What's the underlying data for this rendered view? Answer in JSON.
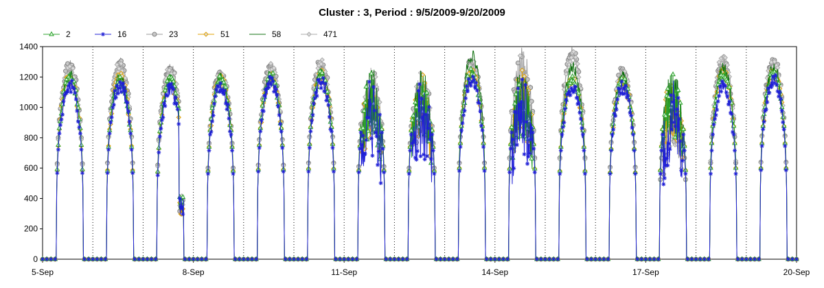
{
  "chart_data": {
    "type": "line",
    "title": "Cluster : 3, Period : 9/5/2009-9/20/2009",
    "xlabel": "",
    "ylabel": "",
    "x_tick_labels": [
      "5-Sep",
      "8-Sep",
      "11-Sep",
      "14-Sep",
      "17-Sep",
      "20-Sep"
    ],
    "y_tick_labels": [
      "0",
      "200",
      "400",
      "600",
      "800",
      "1000",
      "1200",
      "1400"
    ],
    "ylim": [
      0,
      1400
    ],
    "x_range_days": [
      0,
      15
    ],
    "grid": "dotted vertical day lines",
    "legend_placement": "top-left",
    "series": [
      {
        "name": "2",
        "color": "#2ca02c",
        "marker": "triangle",
        "daily_peak": [
          1240,
          1220,
          1210,
          1220,
          1240,
          1250,
          1230,
          1220,
          1260,
          1250,
          1220,
          1200,
          1230,
          1260,
          1260
        ]
      },
      {
        "name": "16",
        "color": "#1f1fd6",
        "marker": "asterisk",
        "daily_peak": [
          1190,
          1190,
          1160,
          1180,
          1210,
          1210,
          1200,
          1180,
          1220,
          1200,
          1180,
          1180,
          1180,
          1180,
          1230
        ]
      },
      {
        "name": "23",
        "color": "#999999",
        "marker": "circle",
        "daily_peak": [
          1320,
          1330,
          1300,
          1260,
          1300,
          1330,
          1280,
          1260,
          1330,
          1400,
          1400,
          1270,
          1100,
          1330,
          1340
        ]
      },
      {
        "name": "51",
        "color": "#e0a000",
        "marker": "diamond",
        "daily_peak": [
          1230,
          1230,
          1200,
          1220,
          1240,
          1250,
          1230,
          1220,
          1260,
          1250,
          1220,
          1200,
          1230,
          1260,
          1260
        ]
      },
      {
        "name": "58",
        "color": "#107010",
        "marker": "none",
        "daily_peak": [
          1250,
          1240,
          1220,
          1230,
          1250,
          1260,
          1280,
          1250,
          1380,
          1270,
          1300,
          1240,
          1270,
          1300,
          1300
        ]
      },
      {
        "name": "471",
        "color": "#aaaaaa",
        "marker": "diamond",
        "daily_peak": [
          1300,
          1320,
          1280,
          1250,
          1290,
          1320,
          1270,
          1250,
          1320,
          1380,
          1380,
          1260,
          1100,
          1360,
          1330
        ]
      }
    ],
    "daylight_hours": [
      6.5,
      19.5
    ]
  }
}
